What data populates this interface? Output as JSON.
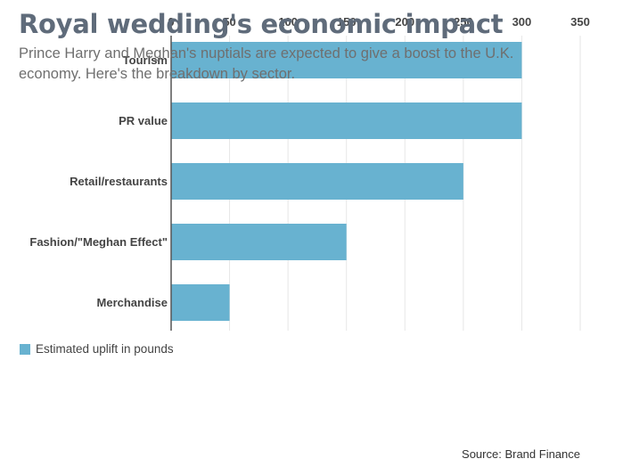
{
  "header": {
    "title": "Royal wedding's economic impact",
    "subtitle": "Prince Harry and Meghan's nuptials are expected to give a boost to the U.K. economy. Here's the breakdown by sector."
  },
  "legend": {
    "label": "Estimated uplift in pounds",
    "color": "#68b2d0"
  },
  "source": "Source: Brand Finance",
  "chart_data": {
    "type": "bar",
    "orientation": "horizontal",
    "categories": [
      "Tourism",
      "PR value",
      "Retail/restaurants",
      "Fashion/\"Meghan Effect\"",
      "Merchandise"
    ],
    "series": [
      {
        "name": "Estimated uplift in pounds",
        "values": [
          300,
          300,
          250,
          150,
          50
        ]
      }
    ],
    "xticks": [
      0,
      50,
      100,
      150,
      200,
      250,
      300,
      350
    ],
    "xlim": [
      0,
      350
    ],
    "xaxis_position": "top",
    "grid": true,
    "legend_position": "bottom-left",
    "bar_color": "#68b2d0"
  }
}
